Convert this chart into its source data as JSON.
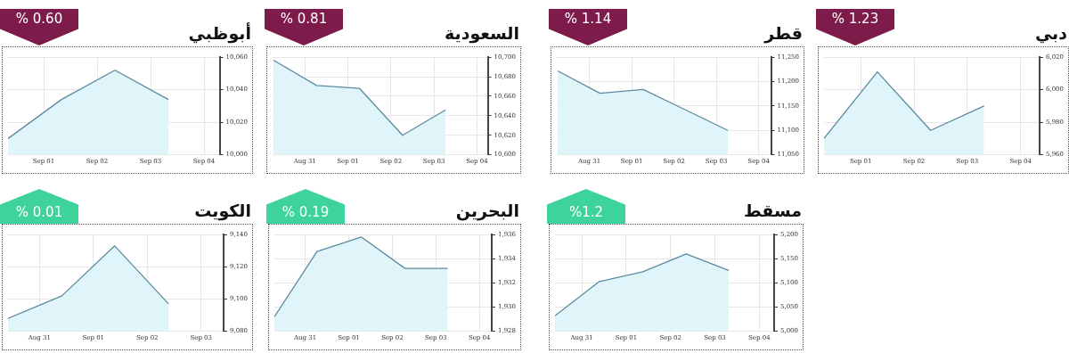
{
  "chart_data": [
    {
      "type": "area",
      "title": "أبوظبي",
      "annotations": [
        "% 0.60"
      ],
      "x": [
        "--08-31T08:00",
        "--09-01T08:00",
        "--09-02T08:00",
        "--09-03T08:00"
      ],
      "series": [
        {
          "color": "#dff5fa",
          "values": [
            10010,
            10034,
            10052,
            10034
          ]
        }
      ],
      "xlim": [
        "--08-31T08:00",
        "--09-04T07:00"
      ],
      "xticks": [
        {
          "value": "--09-01",
          "label": "Sep 01"
        },
        {
          "value": "--09-02",
          "label": "Sep 02"
        },
        {
          "value": "--09-03",
          "label": "Sep 03"
        },
        {
          "value": "--09-04",
          "label": "Sep 04"
        }
      ],
      "ylim": [
        10000,
        10060
      ],
      "yticks": [
        {
          "value": 10000,
          "label": "10,000"
        },
        {
          "value": 10020,
          "label": "10,020"
        },
        {
          "value": 10040,
          "label": "10,040"
        },
        {
          "value": 10060,
          "label": "10,060"
        }
      ],
      "grid": true
    },
    {
      "type": "area",
      "title": "السعودية",
      "annotations": [
        "% 0.81"
      ],
      "x": [
        "--08-30T06:30",
        "--08-31T06:30",
        "--09-01T06:30",
        "--09-02T06:30",
        "--09-03T06:30"
      ],
      "series": [
        {
          "color": "#dff5fa",
          "values": [
            10697,
            10671,
            10668,
            10620,
            10646
          ]
        }
      ],
      "xlim": [
        "--08-30T06:00",
        "--09-04T06:00"
      ],
      "xticks": [
        {
          "value": "--08-31",
          "label": "Aug 31"
        },
        {
          "value": "--09-01",
          "label": "Sep 01"
        },
        {
          "value": "--09-02",
          "label": "Sep 02"
        },
        {
          "value": "--09-03",
          "label": "Sep 03"
        },
        {
          "value": "--09-04",
          "label": "Sep 04"
        }
      ],
      "ylim": [
        10600,
        10700
      ],
      "yticks": [
        {
          "value": 10600,
          "label": "10,600"
        },
        {
          "value": 10620,
          "label": "10,620"
        },
        {
          "value": 10640,
          "label": "10,640"
        },
        {
          "value": 10660,
          "label": "10,660"
        },
        {
          "value": 10680,
          "label": "10,680"
        },
        {
          "value": 10700,
          "label": "10,700"
        }
      ],
      "grid": true
    },
    {
      "type": "area",
      "title": "قطر",
      "annotations": [
        "% 1.14"
      ],
      "x": [
        "--08-30T06:00",
        "--08-31T06:00",
        "--09-01T06:30",
        "--09-02T06:30",
        "--09-03T06:30"
      ],
      "series": [
        {
          "color": "#dff5fa",
          "values": [
            11222,
            11176,
            11184,
            11142,
            11100
          ]
        }
      ],
      "xlim": [
        "--08-30T05:30",
        "--09-04T07:00"
      ],
      "xticks": [
        {
          "value": "--08-31",
          "label": "Aug 31"
        },
        {
          "value": "--09-01",
          "label": "Sep 01"
        },
        {
          "value": "--09-02",
          "label": "Sep 02"
        },
        {
          "value": "--09-03",
          "label": "Sep 03"
        },
        {
          "value": "--09-04",
          "label": "Sep 04"
        }
      ],
      "ylim": [
        11050,
        11250
      ],
      "yticks": [
        {
          "value": 11050,
          "label": "11,050"
        },
        {
          "value": 11100,
          "label": "11,100"
        },
        {
          "value": 11150,
          "label": "11,150"
        },
        {
          "value": 11200,
          "label": "11,200"
        },
        {
          "value": 11250,
          "label": "11,250"
        }
      ],
      "grid": true
    },
    {
      "type": "area",
      "title": "دبي",
      "annotations": [
        "% 1.23"
      ],
      "x": [
        "--08-31T07:30",
        "--09-01T07:30",
        "--09-02T07:30",
        "--09-03T07:30"
      ],
      "series": [
        {
          "color": "#dff5fa",
          "values": [
            5970,
            6011,
            5975,
            5990
          ]
        }
      ],
      "xlim": [
        "--08-31T07:30",
        "--09-04T08:30"
      ],
      "xticks": [
        {
          "value": "--09-01",
          "label": "Sep 01"
        },
        {
          "value": "--09-02",
          "label": "Sep 02"
        },
        {
          "value": "--09-03",
          "label": "Sep 03"
        },
        {
          "value": "--09-04",
          "label": "Sep 04"
        }
      ],
      "ylim": [
        5960,
        6020
      ],
      "yticks": [
        {
          "value": 5960,
          "label": "5,960"
        },
        {
          "value": 5980,
          "label": "5,980"
        },
        {
          "value": 6000,
          "label": "6,000"
        },
        {
          "value": 6020,
          "label": "6,020"
        }
      ],
      "grid": true
    },
    {
      "type": "area",
      "title": "الكويت",
      "annotations": [
        "% 0.01"
      ],
      "x": [
        "--08-30T10:00",
        "--08-31T10:00",
        "--09-01T09:30",
        "--09-02T09:30"
      ],
      "series": [
        {
          "color": "#dff5fa",
          "values": [
            9088,
            9102,
            9133,
            9097
          ]
        }
      ],
      "xlim": [
        "--08-30T10:00",
        "--09-03T10:00"
      ],
      "xticks": [
        {
          "value": "--08-31",
          "label": "Aug 31"
        },
        {
          "value": "--09-01",
          "label": "Sep 01"
        },
        {
          "value": "--09-02",
          "label": "Sep 02"
        },
        {
          "value": "--09-03",
          "label": "Sep 03"
        }
      ],
      "ylim": [
        9080,
        9140
      ],
      "yticks": [
        {
          "value": 9080,
          "label": "9,080"
        },
        {
          "value": 9100,
          "label": "9,100"
        },
        {
          "value": 9120,
          "label": "9,120"
        },
        {
          "value": 9140,
          "label": "9,140"
        }
      ],
      "grid": true
    },
    {
      "type": "area",
      "title": "البحرين",
      "annotations": [
        "% 0.19"
      ],
      "x": [
        "--08-30T07:00",
        "--08-31T06:30",
        "--09-01T07:00",
        "--09-02T07:00",
        "--09-03T06:30"
      ],
      "series": [
        {
          "color": "#dff5fa",
          "values": [
            1929.2,
            1934.6,
            1935.8,
            1933.2,
            1933.2
          ]
        }
      ],
      "xlim": [
        "--08-30T07:00",
        "--09-04T06:45"
      ],
      "xticks": [
        {
          "value": "--08-31",
          "label": "Aug 31"
        },
        {
          "value": "--09-01",
          "label": "Sep 01"
        },
        {
          "value": "--09-02",
          "label": "Sep 02"
        },
        {
          "value": "--09-03",
          "label": "Sep 03"
        },
        {
          "value": "--09-04",
          "label": "Sep 04"
        }
      ],
      "ylim": [
        1928,
        1936
      ],
      "yticks": [
        {
          "value": 1928,
          "label": "1,928"
        },
        {
          "value": 1930,
          "label": "1,930"
        },
        {
          "value": 1932,
          "label": "1,932"
        },
        {
          "value": 1934,
          "label": "1,934"
        },
        {
          "value": 1936,
          "label": "1,936"
        }
      ],
      "grid": true
    },
    {
      "type": "area",
      "title": "مسقط",
      "annotations": [
        "%1.2"
      ],
      "x": [
        "--08-30T09:30",
        "--08-31T09:30",
        "--09-01T09:00",
        "--09-02T08:30",
        "--09-03T07:30"
      ],
      "series": [
        {
          "color": "#dff5fa",
          "values": [
            5032,
            5103,
            5123,
            5160,
            5126
          ]
        }
      ],
      "xlim": [
        "--08-30T09:30",
        "--09-04T08:00"
      ],
      "xticks": [
        {
          "value": "--08-31",
          "label": "Aug 31"
        },
        {
          "value": "--09-01",
          "label": "Sep 01"
        },
        {
          "value": "--09-02",
          "label": "Sep 02"
        },
        {
          "value": "--09-03",
          "label": "Sep 03"
        },
        {
          "value": "--09-04",
          "label": "Sep 04"
        }
      ],
      "ylim": [
        5000,
        5200
      ],
      "yticks": [
        {
          "value": 5000,
          "label": "5,000"
        },
        {
          "value": 5050,
          "label": "5,050"
        },
        {
          "value": 5100,
          "label": "5,100"
        },
        {
          "value": 5150,
          "label": "5,150"
        },
        {
          "value": 5200,
          "label": "5,200"
        }
      ],
      "grid": true
    }
  ]
}
